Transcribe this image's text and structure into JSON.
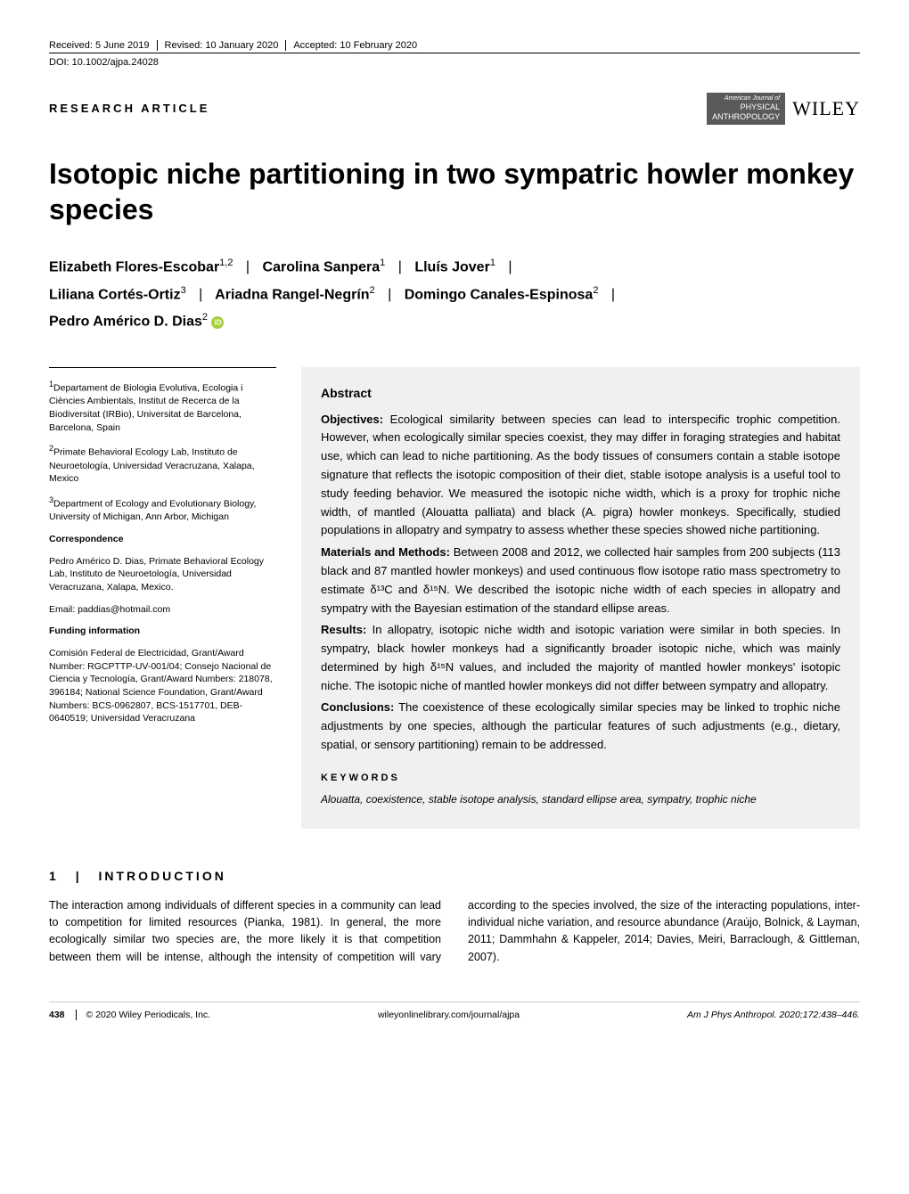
{
  "meta": {
    "received": "Received: 5 June 2019",
    "revised": "Revised: 10 January 2020",
    "accepted": "Accepted: 10 February 2020",
    "doi": "DOI: 10.1002/ajpa.24028"
  },
  "articleType": "RESEARCH ARTICLE",
  "brand": {
    "line1": "American Journal of",
    "line2": "PHYSICAL",
    "line3": "ANTHROPOLOGY",
    "publisher": "WILEY"
  },
  "title": "Isotopic niche partitioning in two sympatric howler monkey species",
  "authors": {
    "a1": "Elizabeth Flores-Escobar",
    "a1sup": "1,2",
    "a2": "Carolina Sanpera",
    "a2sup": "1",
    "a3": "Lluís Jover",
    "a3sup": "1",
    "a4": "Liliana Cortés-Ortiz",
    "a4sup": "3",
    "a5": "Ariadna Rangel-Negrín",
    "a5sup": "2",
    "a6": "Domingo Canales-Espinosa",
    "a6sup": "2",
    "a7": "Pedro Américo D. Dias",
    "a7sup": "2"
  },
  "affiliations": {
    "aff1sup": "1",
    "aff1": "Departament de Biologia Evolutiva, Ecologia i Ciències Ambientals, Institut de Recerca de la Biodiversitat (IRBio), Universitat de Barcelona, Barcelona, Spain",
    "aff2sup": "2",
    "aff2": "Primate Behavioral Ecology Lab, Instituto de Neuroetología, Universidad Veracruzana, Xalapa, Mexico",
    "aff3sup": "3",
    "aff3": "Department of Ecology and Evolutionary Biology, University of Michigan, Ann Arbor, Michigan"
  },
  "correspondence": {
    "head": "Correspondence",
    "body": "Pedro Américo D. Dias, Primate Behavioral Ecology Lab, Instituto de Neuroetología, Universidad Veracruzana, Xalapa, Mexico.",
    "email": "Email: paddias@hotmail.com"
  },
  "funding": {
    "head": "Funding information",
    "body": "Comisión Federal de Electricidad, Grant/Award Number: RGCPTTP-UV-001/04; Consejo Nacional de Ciencia y Tecnología, Grant/Award Numbers: 218078, 396184; National Science Foundation, Grant/Award Numbers: BCS-0962807, BCS-1517701, DEB-0640519; Universidad Veracruzana"
  },
  "abstract": {
    "head": "Abstract",
    "objectivesLabel": "Objectives:",
    "objectives": " Ecological similarity between species can lead to interspecific trophic competition. However, when ecologically similar species coexist, they may differ in foraging strategies and habitat use, which can lead to niche partitioning. As the body tissues of consumers contain a stable isotope signature that reflects the isotopic composition of their diet, stable isotope analysis is a useful tool to study feeding behavior. We measured the isotopic niche width, which is a proxy for trophic niche width, of mantled (Alouatta palliata) and black (A. pigra) howler monkeys. Specifically, studied populations in allopatry and sympatry to assess whether these species showed niche partitioning.",
    "methodsLabel": "Materials and Methods:",
    "methods": " Between 2008 and 2012, we collected hair samples from 200 subjects (113 black and 87 mantled howler monkeys) and used continuous flow isotope ratio mass spectrometry to estimate δ¹³C and δ¹⁵N. We described the isotopic niche width of each species in allopatry and sympatry with the Bayesian estimation of the standard ellipse areas.",
    "resultsLabel": "Results:",
    "results": " In allopatry, isotopic niche width and isotopic variation were similar in both species. In sympatry, black howler monkeys had a significantly broader isotopic niche, which was mainly determined by high δ¹⁵N values, and included the majority of mantled howler monkeys' isotopic niche. The isotopic niche of mantled howler monkeys did not differ between sympatry and allopatry.",
    "conclusionsLabel": "Conclusions:",
    "conclusions": " The coexistence of these ecologically similar species may be linked to trophic niche adjustments by one species, although the particular features of such adjustments (e.g., dietary, spatial, or sensory partitioning) remain to be addressed.",
    "kwHead": "KEYWORDS",
    "keywords": "Alouatta, coexistence, stable isotope analysis, standard ellipse area, sympatry, trophic niche"
  },
  "intro": {
    "num": "1",
    "head": "INTRODUCTION",
    "body": "The interaction among individuals of different species in a community can lead to competition for limited resources (Pianka, 1981). In general, the more ecologically similar two species are, the more likely it is that competition between them will be intense, although the intensity of competition will vary according to the species involved, the size of the interacting populations, inter-individual niche variation, and resource abundance (Araújo, Bolnick, & Layman, 2011; Dammhahn & Kappeler, 2014; Davies, Meiri, Barraclough, & Gittleman, 2007)."
  },
  "footer": {
    "page": "438",
    "copyright": "© 2020 Wiley Periodicals, Inc.",
    "url": "wileyonlinelibrary.com/journal/ajpa",
    "citation": "Am J Phys Anthropol. 2020;172:438–446."
  },
  "colors": {
    "pageBg": "#ffffff",
    "textColor": "#000000",
    "abstractBg": "#f0f0f0",
    "brandBoxBg": "#5a5a5a",
    "brandBoxText": "#ffffff",
    "orcidBg": "#a6ce39",
    "footerBorder": "#cccccc"
  },
  "typography": {
    "bodyFont": "Arial, Helvetica, sans-serif",
    "titleSize": 32,
    "authorSize": 16,
    "abstractSize": 13,
    "metaSize": 11,
    "affiliationSize": 10.5,
    "bodySize": 12.5
  },
  "layout": {
    "pageWidth": 1020,
    "pageHeight": 1340,
    "leftColWidth": 255,
    "columnGap": 30
  }
}
